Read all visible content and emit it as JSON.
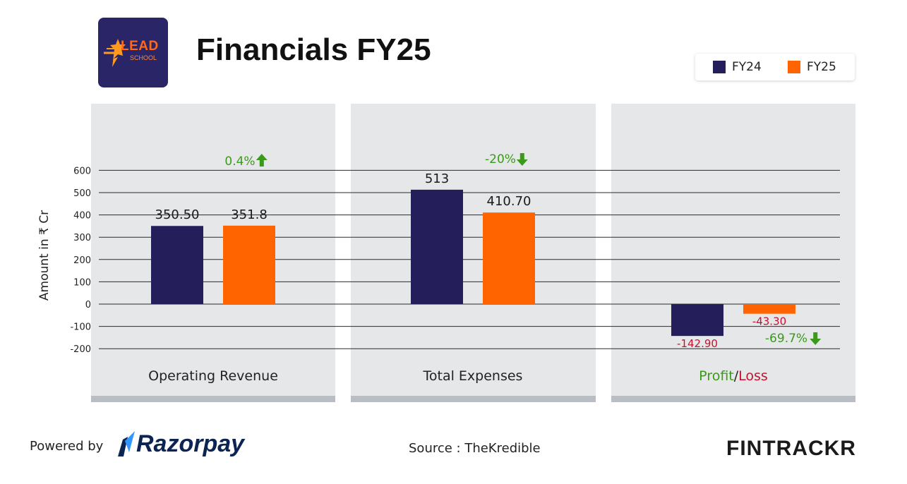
{
  "header": {
    "title": "Financials FY25",
    "logo_word": "LEAD",
    "logo_sub": "SCHOOL"
  },
  "legend": [
    {
      "label": "FY24",
      "color": "#241f5b"
    },
    {
      "label": "FY25",
      "color": "#ff6400"
    }
  ],
  "chart_data": {
    "type": "bar",
    "ylabel": "Amount in ₹ Cr",
    "ylim": [
      -200,
      600
    ],
    "yticks": [
      600,
      500,
      400,
      300,
      200,
      100,
      0,
      -100,
      -200
    ],
    "grid": true,
    "legend_position": "top-right",
    "categories": [
      "Operating Revenue",
      "Total Expenses",
      "Profit/Loss"
    ],
    "series": [
      {
        "name": "FY24",
        "color": "#241f5b",
        "values": [
          350.5,
          513,
          -142.9
        ],
        "labels": [
          "350.50",
          "513",
          "-142.90"
        ]
      },
      {
        "name": "FY25",
        "color": "#ff6400",
        "values": [
          351.8,
          410.7,
          -43.3
        ],
        "labels": [
          "351.8",
          "410.70",
          "-43.30"
        ]
      }
    ],
    "changes": [
      {
        "text": "0.4%",
        "direction": "up"
      },
      {
        "text": "-20%",
        "direction": "down"
      },
      {
        "text": "-69.7%",
        "direction": "down"
      }
    ],
    "profit_loss_label": {
      "profit": "Profit",
      "separator": "/",
      "loss": "Loss"
    },
    "colors": {
      "positive_label": "#1a1a1a",
      "negative_label": "#c8102e",
      "change": "#3a9a1a",
      "profit": "#3a9a1a",
      "loss": "#c8102e"
    }
  },
  "footer": {
    "powered_by": "Powered by",
    "razorpay": "Razorpay",
    "source": "Source : TheKredible",
    "fintrackr": "FINTRACKR"
  }
}
